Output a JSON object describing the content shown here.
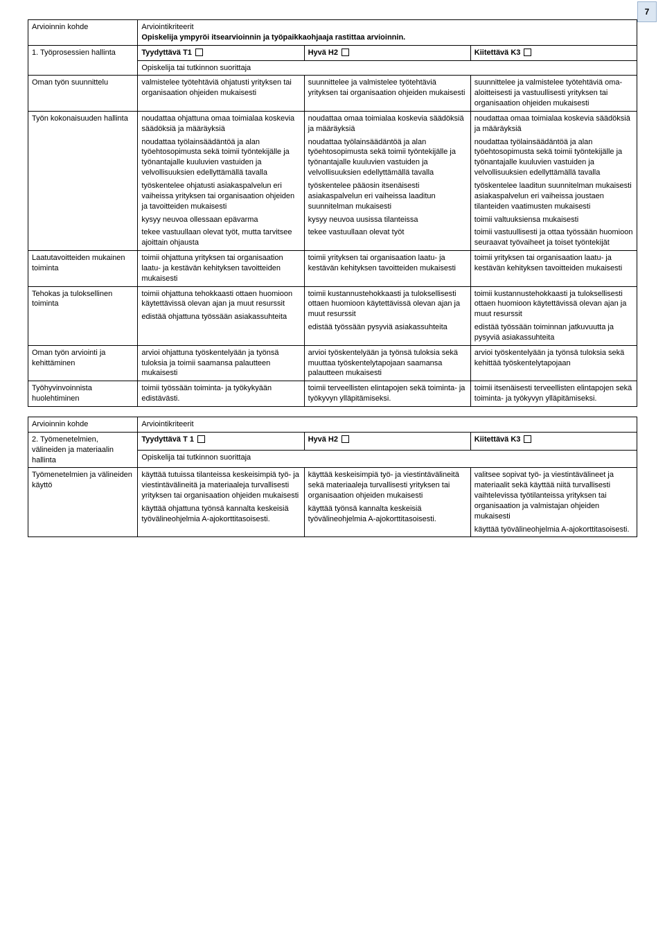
{
  "page_number": "7",
  "table1": {
    "header": {
      "c1": "Arvioinnin kohde",
      "c2": "Arviointikriteerit",
      "subtitle": "Opiskelija ympyröi itsearvioinnin ja työpaikkaohjaaja rastittaa arvioinnin."
    },
    "grade_row": {
      "label": "1. Työprosessien hallinta",
      "t1": "Tyydyttävä T1",
      "h2": "Hyvä H2",
      "k3": "Kiitettävä K3"
    },
    "span_row": "Opiskelija tai tutkinnon suorittaja",
    "rows": [
      {
        "label": "Oman työn suunnittelu",
        "t1": [
          "valmistelee työtehtäviä ohjatusti yrityksen tai organisaation ohjeiden mukaisesti"
        ],
        "h2": [
          "suunnittelee ja valmistelee työtehtäviä yrityksen tai organisaation ohjeiden mukaisesti"
        ],
        "k3": [
          "suunnittelee ja valmistelee työtehtäviä oma-aloitteisesti ja vastuullisesti yrityksen tai organisaation ohjeiden mukaisesti"
        ]
      },
      {
        "label": "Työn kokonaisuuden hallinta",
        "t1": [
          "noudattaa ohjattuna omaa toimialaa koskevia säädöksiä ja määräyksiä",
          "",
          "noudattaa työlainsäädäntöä ja alan työehtosopimusta sekä toimii työntekijälle ja työnantajalle kuuluvien vastuiden ja velvollisuuksien edellyttämällä tavalla",
          "työskentelee ohjatusti asiakaspalvelun eri vaiheissa yrityksen tai organisaation ohjeiden ja tavoitteiden mukaisesti",
          "kysyy neuvoa ollessaan epävarma",
          "tekee vastuullaan olevat työt, mutta tarvitsee ajoittain ohjausta"
        ],
        "h2": [
          "noudattaa omaa toimialaa koskevia säädöksiä ja määräyksiä",
          "",
          "noudattaa työlainsäädäntöä ja alan työehtosopimusta sekä toimii työntekijälle ja työnantajalle kuuluvien vastuiden ja velvollisuuksien edellyttämällä tavalla",
          "työskentelee pääosin itsenäisesti asiakaspalvelun eri vaiheissa laaditun suunnitelman mukaisesti",
          "kysyy neuvoa uusissa tilanteissa",
          "tekee vastuullaan olevat työt"
        ],
        "k3": [
          "noudattaa omaa toimialaa koskevia säädöksiä ja määräyksiä",
          "",
          "noudattaa työlainsäädäntöä ja alan työehtosopimusta sekä toimii työntekijälle ja työnantajalle kuuluvien vastuiden ja velvollisuuksien edellyttämällä tavalla",
          "työskentelee laaditun suunnitelman  mukaisesti asiakaspalvelun eri vaiheissa joustaen tilanteiden vaatimusten mukaisesti",
          "toimii valtuuksiensa mukaisesti",
          "toimii vastuullisesti ja ottaa työssään huomioon seuraavat työvaiheet ja toiset työntekijät"
        ]
      },
      {
        "label": "Laatutavoitteiden mukainen toiminta",
        "t1": [
          "toimii ohjattuna yrityksen tai organisaation laatu- ja kestävän kehityksen tavoitteiden mukaisesti"
        ],
        "h2": [
          "toimii yrityksen tai organisaation laatu- ja kestävän kehityksen tavoitteiden mukaisesti"
        ],
        "k3": [
          "toimii yrityksen tai organisaation laatu- ja kestävän kehityksen tavoitteiden mukaisesti"
        ]
      },
      {
        "label": "Tehokas ja tuloksellinen toiminta",
        "t1": [
          "toimii ohjattuna tehokkaasti ottaen huomioon käytettävissä olevan ajan ja muut resurssit",
          "edistää ohjattuna työssään asiakassuhteita"
        ],
        "h2": [
          "toimii kustannustehokkaasti ja tuloksellisesti ottaen huomioon käytettävissä olevan ajan ja muut resurssit",
          "edistää työssään pysyviä asiakassuhteita"
        ],
        "k3": [
          "toimii kustannustehokkaasti ja tuloksellisesti ottaen huomioon käytettävissä olevan ajan ja muut resurssit",
          "edistää työssään toiminnan jatkuvuutta ja pysyviä asiakassuhteita"
        ]
      },
      {
        "label": "Oman työn arviointi ja kehittäminen",
        "t1": [
          "arvioi ohjattuna työskentelyään ja työnsä tuloksia ja toimii saamansa palautteen mukaisesti"
        ],
        "h2": [
          "arvioi työskentelyään ja työnsä tuloksia sekä muuttaa työskentelytapojaan saamansa palautteen mukaisesti"
        ],
        "k3": [
          "arvioi työskentelyään ja työnsä tuloksia sekä kehittää työskentelytapojaan"
        ]
      },
      {
        "label": "Työhyvinvoinnista huolehtiminen",
        "t1": [
          "toimii työssään toiminta- ja työkykyään edistävästi."
        ],
        "h2": [
          "toimii terveellisten elintapojen sekä toiminta- ja työkyvyn ylläpitämiseksi."
        ],
        "k3": [
          "toimii itsenäisesti terveellisten elintapojen sekä toiminta- ja työkyvyn ylläpitämiseksi."
        ]
      }
    ]
  },
  "table2": {
    "header": {
      "c1": "Arvioinnin kohde",
      "c2": "Arviointikriteerit"
    },
    "grade_row": {
      "label": "2. Työmenetelmien, välineiden ja materiaalin hallinta",
      "t1": "Tyydyttävä T 1",
      "h2": "Hyvä H2",
      "k3": "Kiitettävä K3"
    },
    "span_row": "Opiskelija tai tutkinnon suorittaja",
    "rows": [
      {
        "label": "Työmenetelmien ja välineiden käyttö",
        "t1": [
          "käyttää tutuissa tilanteissa keskeisimpiä työ- ja viestintävälineitä ja materiaaleja turvallisesti yrityksen tai organisaation ohjeiden mukaisesti",
          "käyttää ohjattuna työnsä kannalta keskeisiä työvälineohjelmia A-ajokorttitasoisesti."
        ],
        "h2": [
          "käyttää keskeisimpiä työ- ja viestintävälineitä sekä materiaaleja turvallisesti yrityksen tai organisaation ohjeiden mukaisesti",
          "käyttää työnsä kannalta keskeisiä työvälineohjelmia A-ajokorttitasoisesti."
        ],
        "k3": [
          "valitsee sopivat työ- ja viestintävälineet ja materiaalit sekä käyttää niitä turvallisesti vaihtelevissa työtilanteissa yrityksen tai organisaation ja valmistajan ohjeiden mukaisesti",
          "käyttää työvälineohjelmia A-ajokorttitasoisesti."
        ]
      }
    ]
  }
}
